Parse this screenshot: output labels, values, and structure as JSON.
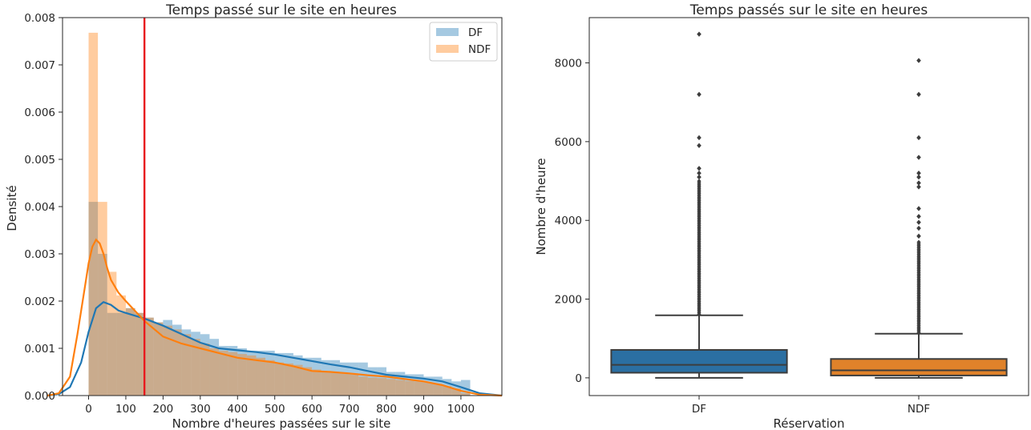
{
  "chart_data": [
    {
      "type": "histogram",
      "title": "Temps passé sur le site en heures",
      "xlabel": "Nombre d'heures passées sur le site",
      "ylabel": "Densité",
      "xlim": [
        -70,
        1110
      ],
      "ylim": [
        0,
        0.008
      ],
      "xticks": [
        "0",
        "100",
        "200",
        "300",
        "400",
        "500",
        "600",
        "700",
        "800",
        "900",
        "1000"
      ],
      "yticks": [
        "0.000",
        "0.001",
        "0.002",
        "0.003",
        "0.004",
        "0.005",
        "0.006",
        "0.007",
        "0.008"
      ],
      "legend": {
        "placement": "top-right",
        "entries": [
          "DF",
          "NDF"
        ]
      },
      "colors": {
        "DF": "#1f77b4",
        "NDF": "#ff7f0e",
        "vline": "#e8191e"
      },
      "vline": 150,
      "bin_width": 25,
      "series": [
        {
          "name": "DF",
          "bins_start": 0,
          "values": [
            0.0041,
            0.003,
            0.00175,
            0.00175,
            0.00185,
            0.00175,
            0.00165,
            0.00155,
            0.0016,
            0.0015,
            0.0014,
            0.00135,
            0.0013,
            0.0012,
            0.00105,
            0.00105,
            0.001,
            0.00095,
            0.00095,
            0.00095,
            0.0009,
            0.0009,
            0.00085,
            0.0008,
            0.0008,
            0.00075,
            0.00075,
            0.0007,
            0.0007,
            0.0007,
            0.0006,
            0.0006,
            0.0005,
            0.0005,
            0.00045,
            0.00045,
            0.0004,
            0.0004,
            0.00035,
            0.0003,
            0.00033
          ],
          "kde_x": [
            -110,
            -80,
            -50,
            -20,
            0,
            10,
            20,
            40,
            60,
            80,
            100,
            150,
            200,
            250,
            300,
            350,
            400,
            450,
            500,
            550,
            600,
            650,
            700,
            750,
            800,
            850,
            900,
            950,
            1000,
            1050,
            1110
          ],
          "kde_y": [
            0,
            3e-05,
            0.00018,
            0.0007,
            0.00135,
            0.0016,
            0.00185,
            0.00198,
            0.00192,
            0.0018,
            0.00175,
            0.00163,
            0.00148,
            0.0013,
            0.00112,
            0.001,
            0.00096,
            0.00092,
            0.00087,
            0.0008,
            0.00073,
            0.00066,
            0.0006,
            0.00052,
            0.00044,
            0.0004,
            0.00036,
            0.0003,
            0.00018,
            5e-05,
            0.0
          ]
        },
        {
          "name": "NDF",
          "bins_start": 0,
          "values": [
            0.00768,
            0.0041,
            0.00262,
            0.00212,
            0.00185,
            0.00175,
            0.00165,
            0.00155,
            0.00148,
            0.0014,
            0.0013,
            0.0012,
            0.0011,
            0.001,
            0.00095,
            0.00092,
            0.00088,
            0.00085,
            0.0008,
            0.00075,
            0.0007,
            0.00068,
            0.00065,
            0.0006,
            0.00055,
            0.00052,
            0.0005,
            0.00048,
            0.00045,
            0.0004,
            0.00038,
            0.00037,
            0.00035,
            0.00033,
            0.00031,
            0.0003,
            0.00028,
            0.00025,
            0.0002,
            0.00015,
            5e-05
          ],
          "kde_x": [
            -110,
            -80,
            -50,
            -30,
            -10,
            0,
            10,
            20,
            30,
            40,
            50,
            60,
            80,
            100,
            150,
            200,
            250,
            300,
            350,
            400,
            450,
            500,
            550,
            600,
            650,
            700,
            750,
            800,
            850,
            900,
            950,
            1000,
            1050,
            1110
          ],
          "kde_y": [
            0,
            5e-05,
            0.0004,
            0.0013,
            0.0023,
            0.0028,
            0.00315,
            0.0033,
            0.00322,
            0.003,
            0.0027,
            0.00245,
            0.00218,
            0.002,
            0.00158,
            0.00125,
            0.0011,
            0.001,
            0.0009,
            0.0008,
            0.00075,
            0.0007,
            0.00062,
            0.00052,
            0.0005,
            0.00047,
            0.00043,
            0.0004,
            0.00035,
            0.0003,
            0.00022,
            0.0001,
            2e-05,
            0.0
          ]
        }
      ]
    },
    {
      "type": "boxplot",
      "title": "Temps passés sur le site en heures",
      "xlabel": "Réservation",
      "ylabel": "Nombre d'heure",
      "categories": [
        "DF",
        "NDF"
      ],
      "ylim": [
        -450,
        9150
      ],
      "yticks": [
        "0",
        "2000",
        "4000",
        "6000",
        "8000"
      ],
      "colors": {
        "DF": "#2b6fa2",
        "NDF": "#e0822a",
        "lines": "#3d3d3d"
      },
      "series": [
        {
          "name": "DF",
          "whisker_low": 0,
          "q1": 130,
          "median": 330,
          "q3": 710,
          "whisker_high": 1590,
          "outlier_dense_range": [
            1590,
            5000
          ],
          "outliers": [
            5100,
            5200,
            5320,
            5900,
            6100,
            7200,
            8730
          ]
        },
        {
          "name": "NDF",
          "whisker_low": 0,
          "q1": 60,
          "median": 190,
          "q3": 480,
          "whisker_high": 1120,
          "outlier_dense_range": [
            1120,
            3450
          ],
          "outliers": [
            3600,
            3800,
            3950,
            4100,
            4300,
            4850,
            4950,
            5100,
            5200,
            5600,
            6100,
            7200,
            8060
          ]
        }
      ]
    }
  ]
}
